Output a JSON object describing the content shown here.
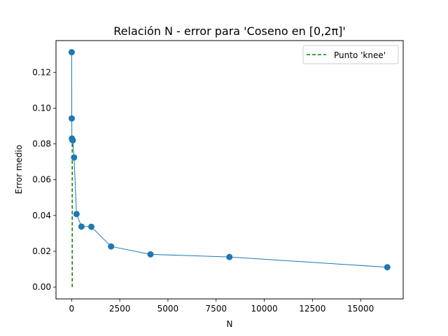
{
  "chart_data": {
    "type": "line",
    "title": "Relación N - error para 'Coseno en [0,2π]'",
    "xlabel": "N",
    "ylabel": "Error medio",
    "xlim": [
      -810,
      17210
    ],
    "ylim": [
      -0.0066,
      0.1377
    ],
    "xticks": [
      0,
      2500,
      5000,
      7500,
      10000,
      12500,
      15000
    ],
    "xtick_labels": [
      "0",
      "2500",
      "5000",
      "7500",
      "10000",
      "12500",
      "15000"
    ],
    "yticks": [
      0.0,
      0.02,
      0.04,
      0.06,
      0.08,
      0.1,
      0.12
    ],
    "ytick_labels": [
      "0.00",
      "0.02",
      "0.04",
      "0.06",
      "0.08",
      "0.10",
      "0.12"
    ],
    "grid": false,
    "legend_position": "top-right",
    "series": [
      {
        "kind": "line-marker",
        "color": "#1f77b4",
        "x": [
          4,
          8,
          16,
          32,
          64,
          128,
          256,
          512,
          1024,
          2048,
          4096,
          8192,
          16384
        ],
        "y": [
          0.1312,
          0.0942,
          0.083,
          0.0823,
          0.082,
          0.0724,
          0.0408,
          0.0338,
          0.0337,
          0.0227,
          0.0183,
          0.0168,
          0.0111
        ]
      },
      {
        "kind": "vline",
        "name": "Punto 'knee'",
        "color": "#008000",
        "x": 32,
        "y_range": [
          0.0,
          0.0823
        ]
      }
    ]
  }
}
